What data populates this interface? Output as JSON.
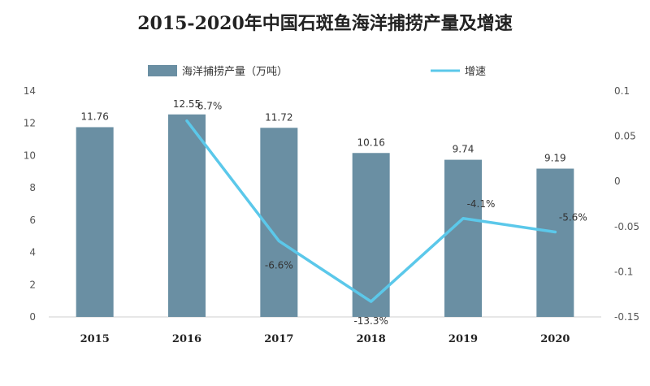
{
  "chart_data": {
    "type": "bar",
    "title": "2015-2020年中国石斑鱼海洋捕捞产量及增速",
    "categories": [
      "2015",
      "2016",
      "2017",
      "2018",
      "2019",
      "2020"
    ],
    "series": [
      {
        "name": "海洋捕捞产量（万吨）",
        "type": "bar",
        "axis": "left",
        "values": [
          11.76,
          12.55,
          11.72,
          10.16,
          9.74,
          9.19
        ],
        "labels": [
          "11.76",
          "12.55",
          "11.72",
          "10.16",
          "9.74",
          "9.19"
        ],
        "color": "#6a8fa3"
      },
      {
        "name": "增速",
        "type": "line",
        "axis": "right",
        "values": [
          null,
          0.067,
          -0.066,
          -0.133,
          -0.041,
          -0.056
        ],
        "labels": [
          "",
          "6.7%",
          "-6.6%",
          "-13.3%",
          "-4.1%",
          "-5.6%"
        ],
        "color": "#5bc8ea"
      }
    ],
    "y_left": {
      "min": 0,
      "max": 14,
      "ticks": [
        "0",
        "2",
        "4",
        "6",
        "8",
        "10",
        "12",
        "14"
      ]
    },
    "y_right": {
      "min": -0.15,
      "max": 0.1,
      "ticks": [
        "-0.15",
        "-0.1",
        "-0.05",
        "0",
        "0.05",
        "0.1"
      ]
    },
    "grid": false,
    "legend_position": "top"
  }
}
